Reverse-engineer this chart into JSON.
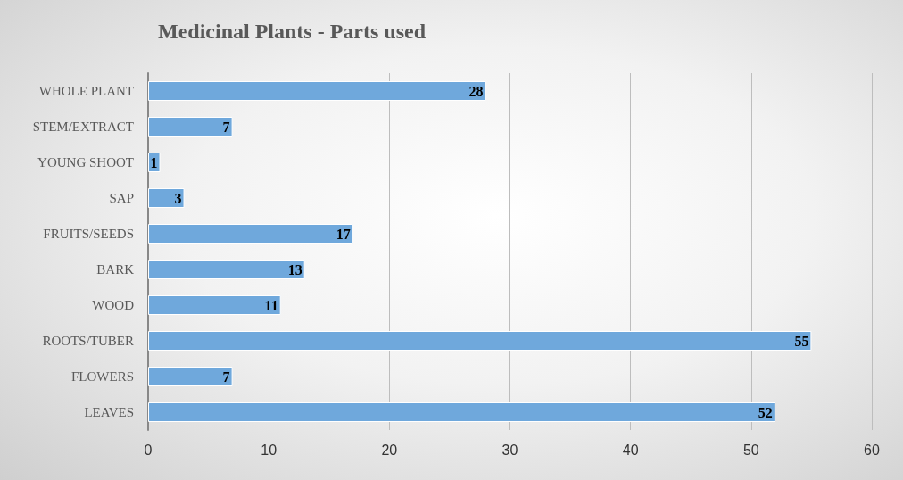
{
  "chart_data": {
    "type": "bar",
    "orientation": "horizontal",
    "title": "Medicinal Plants - Parts used",
    "categories": [
      "WHOLE PLANT",
      "STEM/EXTRACT",
      "YOUNG SHOOT",
      "SAP",
      "FRUITS/SEEDS",
      "BARK",
      "WOOD",
      "ROOTS/TUBER",
      "FLOWERS",
      "LEAVES"
    ],
    "values": [
      28,
      7,
      1,
      3,
      17,
      13,
      11,
      55,
      7,
      52
    ],
    "color": "#6fa8dc",
    "xlim": [
      0,
      60
    ],
    "xticks": [
      0,
      10,
      20,
      30,
      40,
      50,
      60
    ],
    "grid": "x",
    "data_labels": true
  }
}
